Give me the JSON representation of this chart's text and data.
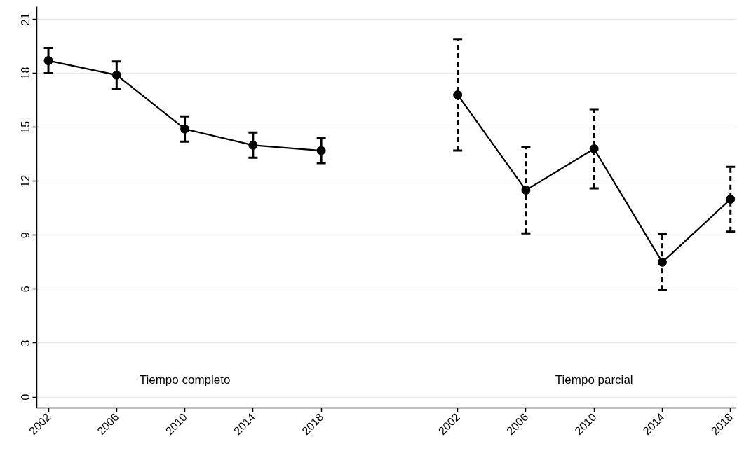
{
  "chart_data": {
    "type": "line",
    "categories": [
      "2002",
      "2006",
      "2010",
      "2014",
      "2018",
      null,
      "2002",
      "2006",
      "2010",
      "2014",
      "2018"
    ],
    "series": [
      {
        "color": "#000000",
        "values": [
          18.7,
          17.9,
          14.9,
          14.0,
          13.7,
          null,
          null,
          null,
          null,
          null,
          null
        ],
        "errors": [
          0.7,
          0.75,
          0.7,
          0.7,
          0.7,
          null,
          null,
          null,
          null,
          null,
          null
        ]
      },
      {
        "color": "#000000",
        "values": [
          null,
          null,
          null,
          null,
          null,
          null,
          16.8,
          11.5,
          13.8,
          7.5,
          11.0
        ],
        "errors": [
          null,
          null,
          null,
          null,
          null,
          null,
          3.1,
          2.4,
          2.2,
          1.55,
          1.8
        ]
      }
    ],
    "annotations": [
      "Tiempo completo",
      "Tiempo parcial"
    ],
    "ylim": [
      -0.6,
      21.7
    ],
    "yticks": [
      0,
      3,
      6,
      9,
      12,
      15,
      18,
      21
    ],
    "grid": "y",
    "marker": "circle",
    "line_style": "solid"
  }
}
